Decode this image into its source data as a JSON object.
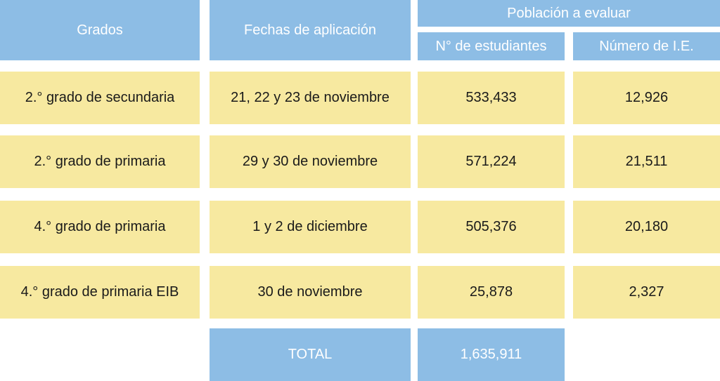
{
  "header": {
    "grados": "Grados",
    "fechas": "Fechas de aplicación",
    "poblacion": "Población a evaluar",
    "n_estudiantes": "N° de estudiantes",
    "numero_ie": "Número de I.E."
  },
  "rows": [
    {
      "grado": "2.° grado de secundaria",
      "fecha": "21, 22 y 23 de noviembre",
      "estudiantes": "533,433",
      "ie": "12,926"
    },
    {
      "grado": "2.° grado de primaria",
      "fecha": "29 y 30 de noviembre",
      "estudiantes": "571,224",
      "ie": "21,511"
    },
    {
      "grado": "4.° grado de primaria",
      "fecha": "1 y 2 de diciembre",
      "estudiantes": "505,376",
      "ie": "20,180"
    },
    {
      "grado": "4.° grado de primaria EIB",
      "fecha": "30 de noviembre",
      "estudiantes": "25,878",
      "ie": "2,327"
    }
  ],
  "total": {
    "label": "TOTAL",
    "estudiantes": "1,635,911"
  },
  "colors": {
    "header_blue": "#8dbde5",
    "row_yellow": "#f7e9a0"
  }
}
